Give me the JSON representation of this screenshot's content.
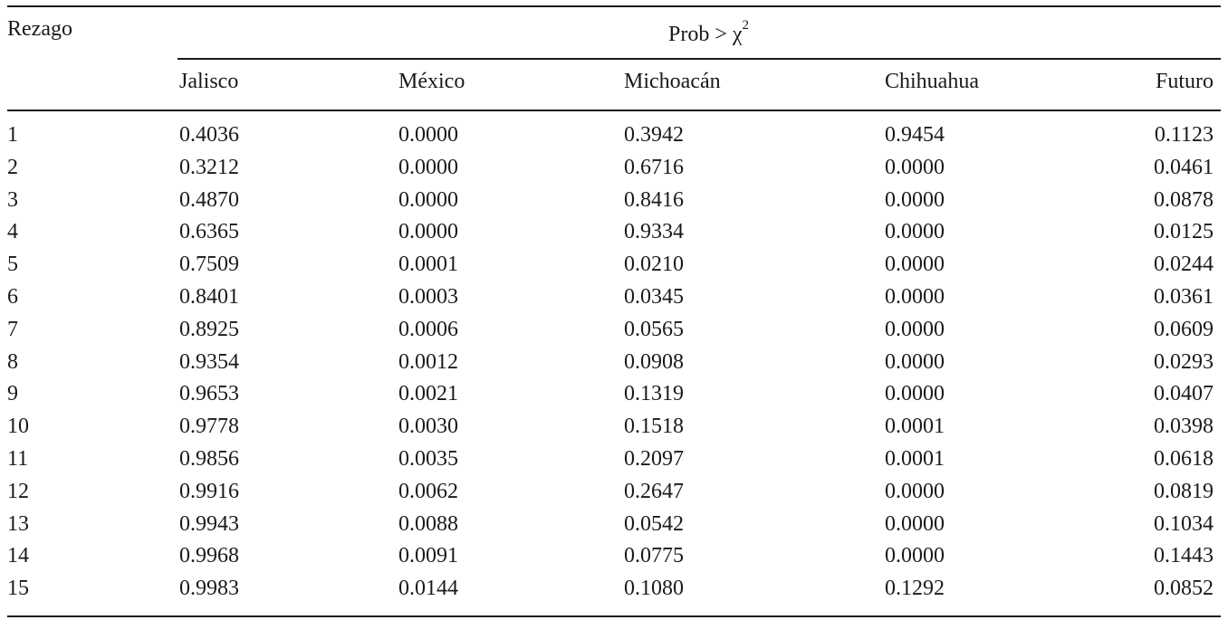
{
  "table": {
    "stub_header": "Rezago",
    "spanner": {
      "text": "Prob > χ",
      "superscript": "2"
    },
    "columns": [
      "Jalisco",
      "México",
      "Michoacán",
      "Chihuahua",
      "Futuro"
    ],
    "rows": [
      [
        "1",
        "0.4036",
        "0.0000",
        "0.3942",
        "0.9454",
        "0.1123"
      ],
      [
        "2",
        "0.3212",
        "0.0000",
        "0.6716",
        "0.0000",
        "0.0461"
      ],
      [
        "3",
        "0.4870",
        "0.0000",
        "0.8416",
        "0.0000",
        "0.0878"
      ],
      [
        "4",
        "0.6365",
        "0.0000",
        "0.9334",
        "0.0000",
        "0.0125"
      ],
      [
        "5",
        "0.7509",
        "0.0001",
        "0.0210",
        "0.0000",
        "0.0244"
      ],
      [
        "6",
        "0.8401",
        "0.0003",
        "0.0345",
        "0.0000",
        "0.0361"
      ],
      [
        "7",
        "0.8925",
        "0.0006",
        "0.0565",
        "0.0000",
        "0.0609"
      ],
      [
        "8",
        "0.9354",
        "0.0012",
        "0.0908",
        "0.0000",
        "0.0293"
      ],
      [
        "9",
        "0.9653",
        "0.0021",
        "0.1319",
        "0.0000",
        "0.0407"
      ],
      [
        "10",
        "0.9778",
        "0.0030",
        "0.1518",
        "0.0001",
        "0.0398"
      ],
      [
        "11",
        "0.9856",
        "0.0035",
        "0.2097",
        "0.0001",
        "0.0618"
      ],
      [
        "12",
        "0.9916",
        "0.0062",
        "0.2647",
        "0.0000",
        "0.0819"
      ],
      [
        "13",
        "0.9943",
        "0.0088",
        "0.0542",
        "0.0000",
        "0.1034"
      ],
      [
        "14",
        "0.9968",
        "0.0091",
        "0.0775",
        "0.0000",
        "0.1443"
      ],
      [
        "15",
        "0.9983",
        "0.0144",
        "0.1080",
        "0.1292",
        "0.0852"
      ]
    ]
  }
}
